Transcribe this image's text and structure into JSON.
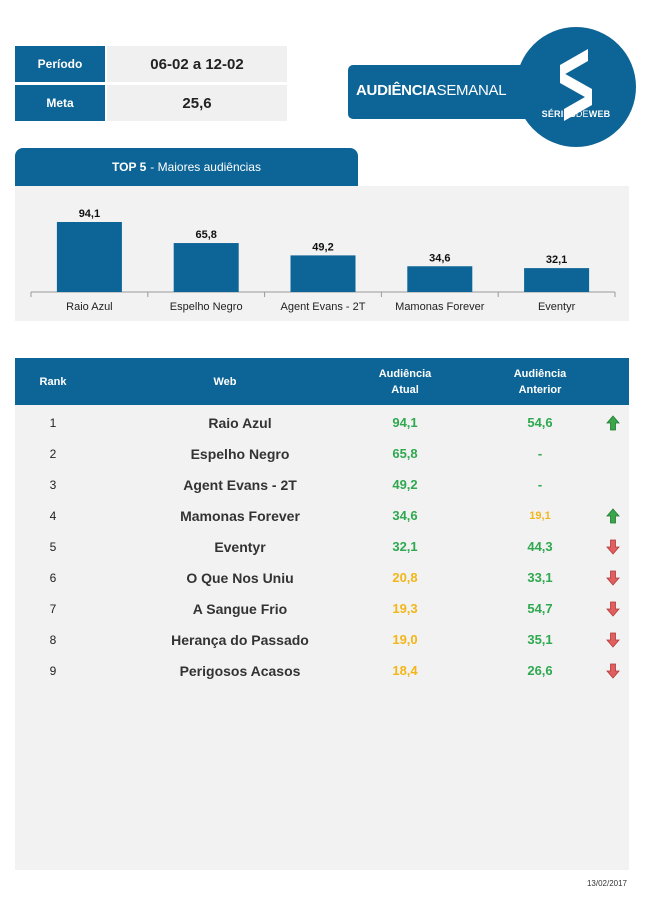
{
  "info": {
    "periodo_label": "Período",
    "periodo_value": "06-02 a 12-02",
    "meta_label": "Meta",
    "meta_value": "25,6"
  },
  "banner": {
    "title_bold": "AUDIÊNCIA",
    "title_light": "SEMANAL"
  },
  "logo": {
    "letter": "S",
    "brand_bold": "SÉRIES",
    "brand_light": "DE",
    "brand_bold2": "WEB"
  },
  "colors": {
    "primary": "#0d6496",
    "panel": "#f2f2f2",
    "green": "#2fa84f",
    "yellow": "#f2b619",
    "red_arrow": "#e06060",
    "green_arrow": "#3aa64a"
  },
  "chart_title": {
    "bold": "TOP 5",
    "rest": "- Maiores audiências"
  },
  "chart_data": {
    "type": "bar",
    "title": "TOP 5 - Maiores audiências",
    "categories": [
      "Raio Azul",
      "Espelho Negro",
      "Agent Evans - 2T",
      "Mamonas Forever",
      "Eventyr"
    ],
    "values": [
      94.1,
      65.8,
      49.2,
      34.6,
      32.1
    ],
    "value_labels": [
      "94,1",
      "65,8",
      "49,2",
      "34,6",
      "32,1"
    ],
    "ylim": [
      0,
      100
    ],
    "grid": false,
    "legend": "none"
  },
  "table": {
    "headers": {
      "rank": "Rank",
      "web": "Web",
      "atual_1": "Audiência",
      "atual_2": "Atual",
      "anterior_1": "Audiência",
      "anterior_2": "Anterior"
    },
    "rows": [
      {
        "rank": "1",
        "web": "Raio Azul",
        "atual": "94,1",
        "atual_color": "green",
        "anterior": "54,6",
        "anterior_color": "green",
        "trend": "up"
      },
      {
        "rank": "2",
        "web": "Espelho Negro",
        "atual": "65,8",
        "atual_color": "green",
        "anterior": "-",
        "anterior_color": "green",
        "trend": "none"
      },
      {
        "rank": "3",
        "web": "Agent Evans - 2T",
        "atual": "49,2",
        "atual_color": "green",
        "anterior": "-",
        "anterior_color": "green",
        "trend": "none"
      },
      {
        "rank": "4",
        "web": "Mamonas Forever",
        "atual": "34,6",
        "atual_color": "green",
        "anterior": "19,1",
        "anterior_color": "yellow",
        "trend": "up"
      },
      {
        "rank": "5",
        "web": "Eventyr",
        "atual": "32,1",
        "atual_color": "green",
        "anterior": "44,3",
        "anterior_color": "green",
        "trend": "down"
      },
      {
        "rank": "6",
        "web": "O Que Nos Uniu",
        "atual": "20,8",
        "atual_color": "yellow",
        "anterior": "33,1",
        "anterior_color": "green",
        "trend": "down"
      },
      {
        "rank": "7",
        "web": "A Sangue Frio",
        "atual": "19,3",
        "atual_color": "yellow",
        "anterior": "54,7",
        "anterior_color": "green",
        "trend": "down"
      },
      {
        "rank": "8",
        "web": "Herança do Passado",
        "atual": "19,0",
        "atual_color": "yellow",
        "anterior": "35,1",
        "anterior_color": "green",
        "trend": "down"
      },
      {
        "rank": "9",
        "web": "Perigosos Acasos",
        "atual": "18,4",
        "atual_color": "yellow",
        "anterior": "26,6",
        "anterior_color": "green",
        "trend": "down"
      }
    ]
  },
  "footer": {
    "date": "13/02/2017"
  }
}
